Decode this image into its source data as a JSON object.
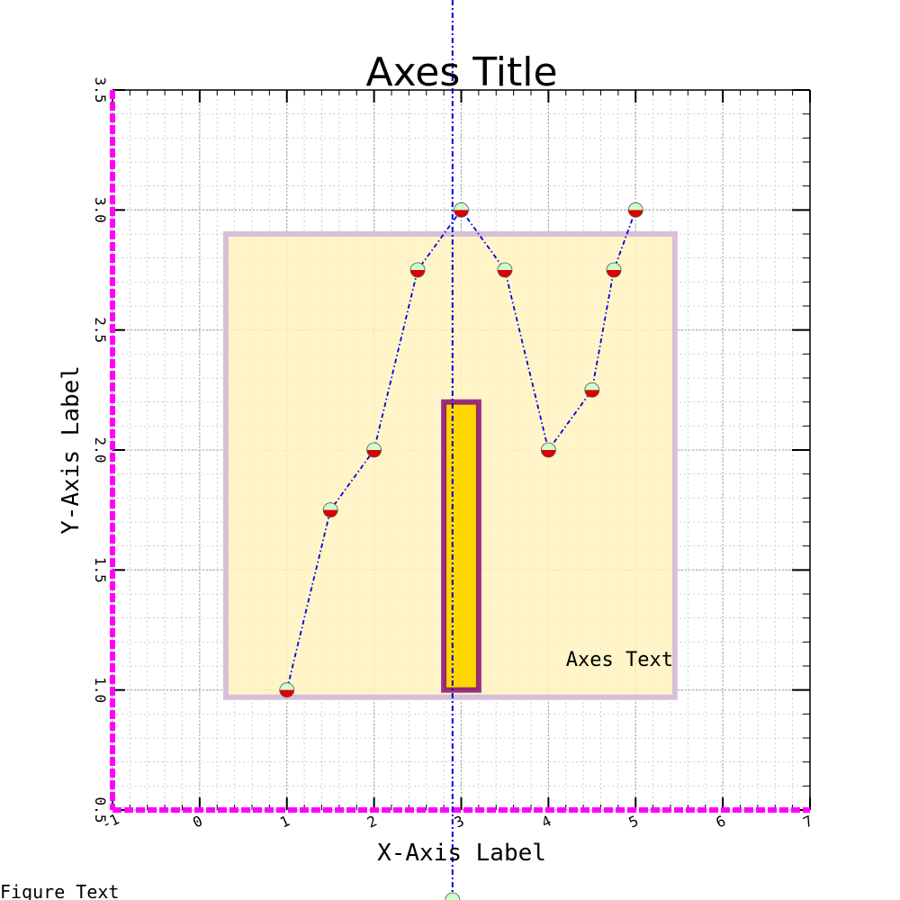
{
  "chart_data": {
    "type": "line",
    "title": "Axes Title",
    "xlabel": "X-Axis Label",
    "ylabel": "Y-Axis Label",
    "xlim": [
      -1,
      7
    ],
    "ylim": [
      0.5,
      3.5
    ],
    "xticks": [
      "-1",
      "0",
      "1",
      "2",
      "3",
      "4",
      "5",
      "6",
      "7"
    ],
    "yticks": [
      "0.5",
      "1.0",
      "1.5",
      "2.0",
      "2.5",
      "3.0",
      "3.5"
    ],
    "grid": true,
    "series": [
      {
        "x": [
          1,
          1.5,
          2,
          2.5,
          3,
          3.5,
          4,
          4.5,
          4.75,
          5
        ],
        "y": [
          1.0,
          1.75,
          2.0,
          2.75,
          3.0,
          2.75,
          2.0,
          2.25,
          2.75,
          3.0
        ],
        "line_color": "#0000dd",
        "marker_top_color": "#ccffcc",
        "marker_bottom_color": "#dd0000"
      }
    ],
    "rect_region": {
      "x": [
        0.3,
        5.45
      ],
      "y": [
        0.97,
        2.9
      ],
      "fill": "#fff3bf",
      "edge": "#d8bfd8"
    },
    "bar": {
      "x": [
        2.8,
        3.2
      ],
      "y": [
        1.0,
        2.2
      ],
      "fill": "#ffd700",
      "edge": "#800080"
    },
    "vline_x": 2.9,
    "annotation": "Axes Text",
    "figure_text": "Figure Text",
    "colors": {
      "spine": "#ff00ff",
      "grid": "#b0b0b0"
    }
  }
}
